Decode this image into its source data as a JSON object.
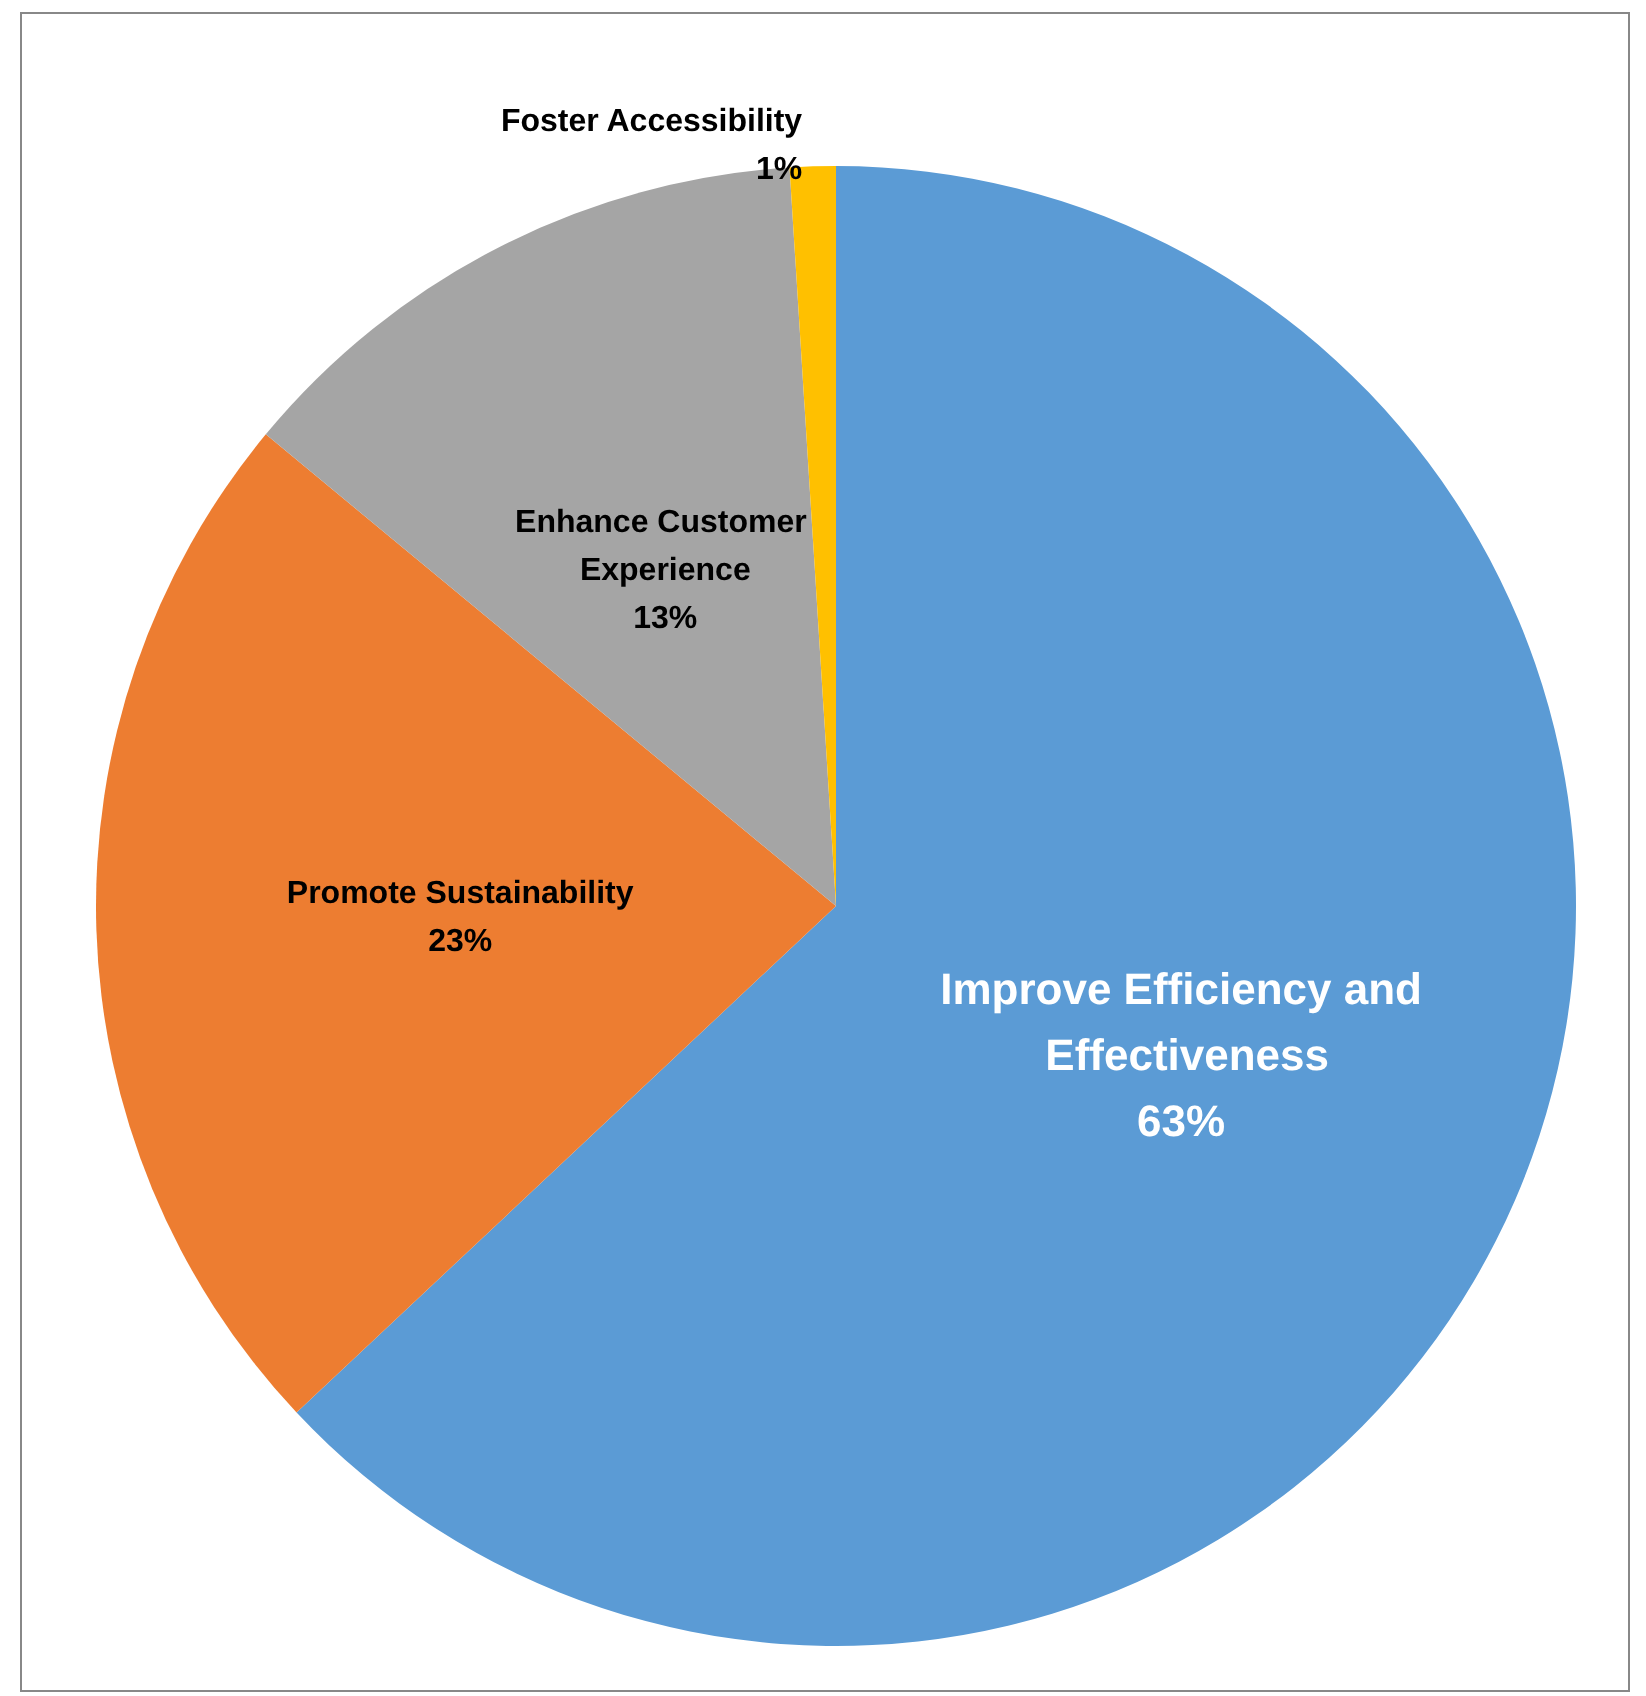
{
  "chart_data": {
    "type": "pie",
    "categories": [
      "Improve Efficiency and Effectiveness",
      "Promote Sustainability",
      "Enhance Customer Experience",
      "Foster Accessibility"
    ],
    "values": [
      63,
      23,
      13,
      1
    ],
    "colors": [
      "#5b9bd5",
      "#ed7d31",
      "#a5a5a5",
      "#ffc000"
    ],
    "value_labels": [
      "63%",
      "23%",
      "13%",
      "1%"
    ],
    "legend": false
  }
}
